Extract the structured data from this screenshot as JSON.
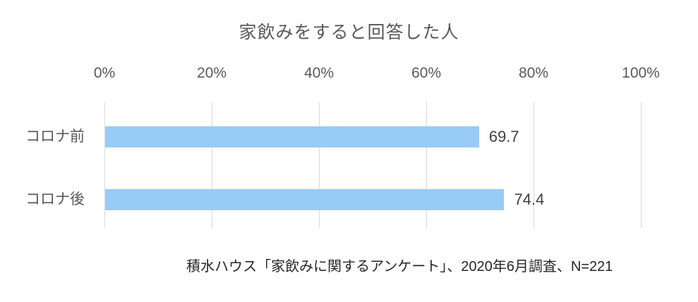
{
  "title": "家飲みをすると回答した人",
  "source": "積水ハウス「家飲みに関するアンケート」、2020年6月調査、N=221",
  "colors": {
    "bar": "#99CBF7",
    "gridline": "#D9D9D9",
    "title_text": "#595959",
    "axis_text": "#595959",
    "value_text": "#404040",
    "source_text": "#262626"
  },
  "chart_data": {
    "type": "bar",
    "orientation": "horizontal",
    "title": "家飲みをすると回答した人",
    "categories": [
      "コロナ前",
      "コロナ後"
    ],
    "values": [
      69.7,
      74.4
    ],
    "value_labels": [
      "69.7",
      "74.4"
    ],
    "xlabel": "",
    "ylabel": "",
    "xlim": [
      0,
      100
    ],
    "x_ticks": [
      "0%",
      "20%",
      "40%",
      "60%",
      "80%",
      "100%"
    ],
    "x_tick_values": [
      0,
      20,
      40,
      60,
      80,
      100
    ],
    "grid": true,
    "tick_label_position": "top",
    "legend": false,
    "annotation": "積水ハウス「家飲みに関するアンケート」、2020年6月調査、N=221"
  }
}
